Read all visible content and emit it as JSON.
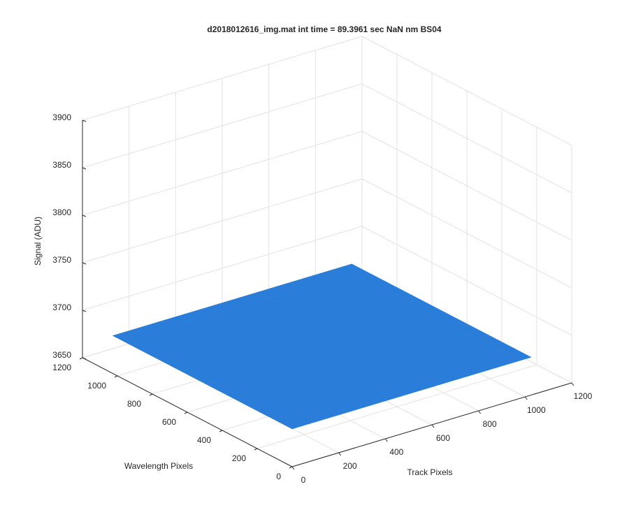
{
  "chart_data": {
    "type": "surface3d",
    "title": "d2018012616_img.mat int time = 89.3961 sec  NaN nm BS04",
    "xlabel": "Track Pixels",
    "ylabel": "Wavelength Pixels",
    "zlabel": "Signal (ADU)",
    "x": [
      0,
      1024
    ],
    "y": [
      0,
      1024
    ],
    "z": [
      [
        3690,
        3690
      ],
      [
        3690,
        3690
      ]
    ],
    "color": "#1f77d8",
    "xlim": [
      0,
      1200
    ],
    "ylim": [
      0,
      1200
    ],
    "zlim": [
      3650,
      3900
    ],
    "xticks": [
      0,
      200,
      400,
      600,
      800,
      1000,
      1200
    ],
    "yticks": [
      0,
      200,
      400,
      600,
      800,
      1000,
      1200
    ],
    "zticks": [
      3650,
      3700,
      3750,
      3800,
      3850,
      3900
    ],
    "grid": true
  }
}
